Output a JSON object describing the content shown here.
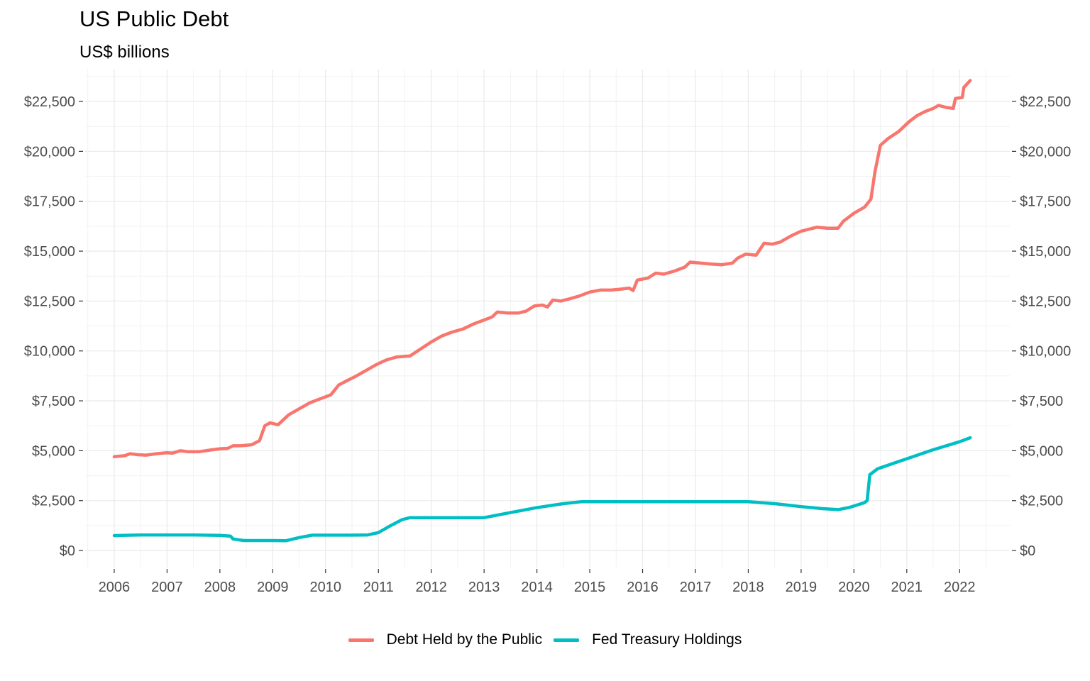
{
  "chart_data": {
    "type": "line",
    "title": "US Public Debt",
    "subtitle": "US$ billions",
    "xlabel": "",
    "ylabel": "",
    "x_unit": "year",
    "xlim": [
      2005.45,
      2022.95
    ],
    "ylim": [
      -850,
      24100
    ],
    "x_ticks": [
      "2006",
      "2007",
      "2008",
      "2009",
      "2010",
      "2011",
      "2012",
      "2013",
      "2014",
      "2015",
      "2016",
      "2017",
      "2018",
      "2019",
      "2020",
      "2021",
      "2022"
    ],
    "y_ticks": [
      {
        "value": 0,
        "label": "$0"
      },
      {
        "value": 2500,
        "label": "$2,500"
      },
      {
        "value": 5000,
        "label": "$5,000"
      },
      {
        "value": 7500,
        "label": "$7,500"
      },
      {
        "value": 10000,
        "label": "$10,000"
      },
      {
        "value": 12500,
        "label": "$12,500"
      },
      {
        "value": 15000,
        "label": "$15,000"
      },
      {
        "value": 17500,
        "label": "$17,500"
      },
      {
        "value": 20000,
        "label": "$20,000"
      },
      {
        "value": 22500,
        "label": "$22,500"
      }
    ],
    "secondary_y_axis": true,
    "grid": true,
    "legend_position": "bottom",
    "series": [
      {
        "name": "Debt Held by the Public",
        "color": "#F8766D",
        "points": [
          [
            2006.0,
            4700
          ],
          [
            2006.2,
            4750
          ],
          [
            2006.3,
            4850
          ],
          [
            2006.45,
            4800
          ],
          [
            2006.6,
            4780
          ],
          [
            2006.8,
            4850
          ],
          [
            2007.0,
            4900
          ],
          [
            2007.1,
            4880
          ],
          [
            2007.25,
            5000
          ],
          [
            2007.4,
            4950
          ],
          [
            2007.6,
            4950
          ],
          [
            2007.8,
            5030
          ],
          [
            2008.0,
            5100
          ],
          [
            2008.15,
            5120
          ],
          [
            2008.25,
            5250
          ],
          [
            2008.4,
            5250
          ],
          [
            2008.6,
            5300
          ],
          [
            2008.75,
            5500
          ],
          [
            2008.85,
            6250
          ],
          [
            2008.95,
            6400
          ],
          [
            2009.1,
            6300
          ],
          [
            2009.3,
            6800
          ],
          [
            2009.5,
            7100
          ],
          [
            2009.7,
            7400
          ],
          [
            2009.9,
            7600
          ],
          [
            2010.1,
            7800
          ],
          [
            2010.25,
            8300
          ],
          [
            2010.4,
            8500
          ],
          [
            2010.55,
            8700
          ],
          [
            2010.75,
            9000
          ],
          [
            2010.95,
            9300
          ],
          [
            2011.15,
            9550
          ],
          [
            2011.35,
            9700
          ],
          [
            2011.6,
            9750
          ],
          [
            2011.8,
            10100
          ],
          [
            2012.0,
            10450
          ],
          [
            2012.2,
            10750
          ],
          [
            2012.4,
            10950
          ],
          [
            2012.6,
            11100
          ],
          [
            2012.8,
            11350
          ],
          [
            2013.0,
            11550
          ],
          [
            2013.15,
            11700
          ],
          [
            2013.25,
            11950
          ],
          [
            2013.45,
            11900
          ],
          [
            2013.65,
            11900
          ],
          [
            2013.8,
            12000
          ],
          [
            2013.95,
            12250
          ],
          [
            2014.1,
            12300
          ],
          [
            2014.2,
            12200
          ],
          [
            2014.3,
            12550
          ],
          [
            2014.45,
            12500
          ],
          [
            2014.6,
            12600
          ],
          [
            2014.8,
            12750
          ],
          [
            2015.0,
            12950
          ],
          [
            2015.2,
            13050
          ],
          [
            2015.4,
            13050
          ],
          [
            2015.6,
            13100
          ],
          [
            2015.75,
            13150
          ],
          [
            2015.82,
            13020
          ],
          [
            2015.9,
            13550
          ],
          [
            2016.1,
            13650
          ],
          [
            2016.25,
            13900
          ],
          [
            2016.4,
            13850
          ],
          [
            2016.6,
            14000
          ],
          [
            2016.8,
            14200
          ],
          [
            2016.9,
            14450
          ],
          [
            2017.1,
            14400
          ],
          [
            2017.3,
            14350
          ],
          [
            2017.5,
            14320
          ],
          [
            2017.7,
            14400
          ],
          [
            2017.8,
            14650
          ],
          [
            2017.95,
            14850
          ],
          [
            2018.15,
            14800
          ],
          [
            2018.2,
            15000
          ],
          [
            2018.3,
            15400
          ],
          [
            2018.45,
            15350
          ],
          [
            2018.6,
            15450
          ],
          [
            2018.8,
            15750
          ],
          [
            2019.0,
            16000
          ],
          [
            2019.15,
            16100
          ],
          [
            2019.3,
            16200
          ],
          [
            2019.5,
            16150
          ],
          [
            2019.7,
            16150
          ],
          [
            2019.8,
            16500
          ],
          [
            2020.0,
            16900
          ],
          [
            2020.2,
            17200
          ],
          [
            2020.32,
            17600
          ],
          [
            2020.4,
            19000
          ],
          [
            2020.5,
            20300
          ],
          [
            2020.65,
            20650
          ],
          [
            2020.85,
            21000
          ],
          [
            2021.05,
            21500
          ],
          [
            2021.2,
            21800
          ],
          [
            2021.35,
            22000
          ],
          [
            2021.5,
            22150
          ],
          [
            2021.6,
            22300
          ],
          [
            2021.75,
            22200
          ],
          [
            2021.88,
            22150
          ],
          [
            2021.92,
            22650
          ],
          [
            2022.05,
            22700
          ],
          [
            2022.08,
            23200
          ],
          [
            2022.2,
            23550
          ]
        ]
      },
      {
        "name": "Fed Treasury Holdings",
        "color": "#00BFC4",
        "points": [
          [
            2006.0,
            750
          ],
          [
            2006.5,
            780
          ],
          [
            2007.0,
            780
          ],
          [
            2007.5,
            780
          ],
          [
            2008.0,
            760
          ],
          [
            2008.2,
            720
          ],
          [
            2008.25,
            580
          ],
          [
            2008.45,
            500
          ],
          [
            2008.7,
            500
          ],
          [
            2009.0,
            500
          ],
          [
            2009.25,
            490
          ],
          [
            2009.5,
            650
          ],
          [
            2009.75,
            770
          ],
          [
            2010.0,
            770
          ],
          [
            2010.5,
            770
          ],
          [
            2010.8,
            780
          ],
          [
            2011.0,
            900
          ],
          [
            2011.2,
            1200
          ],
          [
            2011.45,
            1550
          ],
          [
            2011.6,
            1650
          ],
          [
            2012.0,
            1650
          ],
          [
            2012.5,
            1650
          ],
          [
            2013.0,
            1650
          ],
          [
            2013.5,
            1900
          ],
          [
            2014.0,
            2150
          ],
          [
            2014.5,
            2350
          ],
          [
            2014.85,
            2450
          ],
          [
            2015.5,
            2450
          ],
          [
            2016.0,
            2450
          ],
          [
            2017.0,
            2450
          ],
          [
            2018.0,
            2450
          ],
          [
            2018.5,
            2350
          ],
          [
            2019.0,
            2200
          ],
          [
            2019.4,
            2100
          ],
          [
            2019.7,
            2050
          ],
          [
            2019.9,
            2150
          ],
          [
            2020.2,
            2400
          ],
          [
            2020.25,
            2500
          ],
          [
            2020.3,
            3800
          ],
          [
            2020.45,
            4100
          ],
          [
            2021.0,
            4600
          ],
          [
            2021.5,
            5050
          ],
          [
            2022.0,
            5450
          ],
          [
            2022.2,
            5650
          ]
        ]
      }
    ]
  }
}
